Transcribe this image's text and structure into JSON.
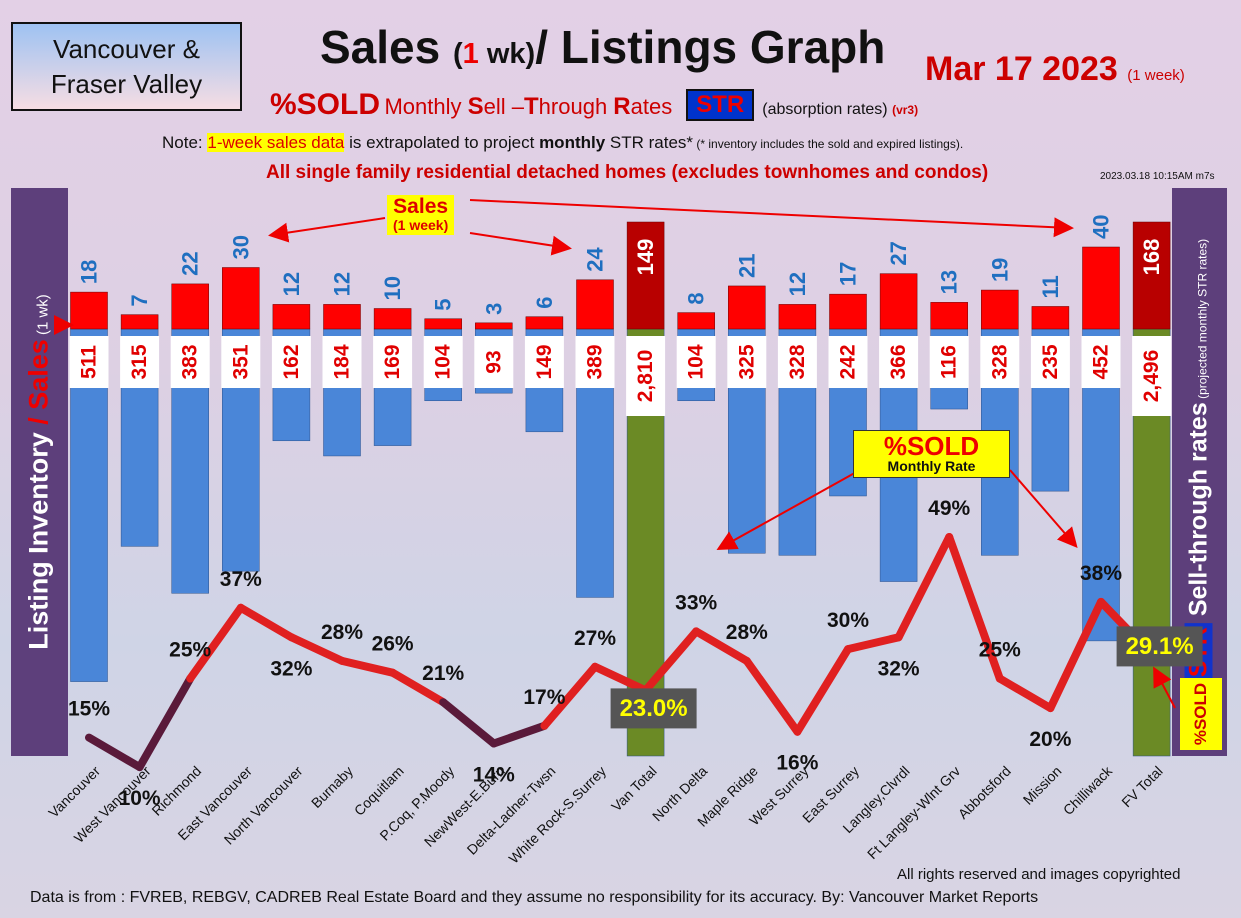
{
  "region_box": {
    "line1": "Vancouver &",
    "line2": "Fraser Valley"
  },
  "title": {
    "part1": "Sales ",
    "part2": "(",
    "part3": "1",
    "part4": " wk)",
    "part5": "/ Listings Graph"
  },
  "date": {
    "text": "Mar 17  2023",
    "suffix": "(1 week)"
  },
  "subtitle": {
    "pct_sold": "%SOLD",
    "s1": "Monthly ",
    "s2": "S",
    "s3": "ell –",
    "s4": "T",
    "s5": "hrough ",
    "s6": "R",
    "s7": "ates",
    "str": "STR",
    "absorption": "(absorption rates)",
    "version": "(vr3)"
  },
  "note": {
    "prefix": "Note: ",
    "highlight": "1-week sales data",
    "mid": " is extrapolated to project ",
    "bold": "monthly",
    "suffix": " STR rates*",
    "tiny": " (* inventory includes the sold and expired listings)."
  },
  "headline": "All single family residential detached homes (excludes townhomes and condos)",
  "timestamp": "2023.03.18 10:15AM m7s",
  "left_axis": {
    "a": "Listing Inventory ",
    "slash": "/",
    "b": " Sales",
    "c": " (1 wk)"
  },
  "right_axis": {
    "str": "STR",
    "a": " Sell-through rates",
    "b": " (projected monthly STR rates)"
  },
  "side_pct_sold": "%SOLD",
  "sales_callout": {
    "l1": "Sales",
    "l2": "(1 week)"
  },
  "sold_callout": {
    "l1": "%SOLD",
    "l2": "Monthly Rate"
  },
  "copyright": "All rights reserved and  images copyrighted",
  "source": "Data is from : FVREB, REBGV, CADREB Real Estate Board and they assume no responsibility for its accuracy. By: Vancouver Market Reports",
  "colors": {
    "sales_bar": "#ff0000",
    "total_sales_bar": "#b80000",
    "listing_bar": "#4a86d8",
    "total_listing_bar": "#6b8a25",
    "line": "#e02020",
    "line_dark": "#5a1a3a",
    "sales_label": "#1f6fc0",
    "listing_label": "#e00000",
    "panel": "#5d3f7b"
  },
  "chart_data": {
    "type": "bar",
    "categories": [
      "Vancouver",
      "West Vancouver",
      "Richmond",
      "East Vancouver",
      "North Vancouver",
      "Burnaby",
      "Coquitlam",
      "P.Coq, P.Moody",
      "NewWest-E.Burn",
      "Delta-Ladner-Twsn",
      "White Rock-S.Surrey",
      "Van Total",
      "North Delta",
      "Maple Ridge",
      "West Surrey",
      "East Surrey",
      "Langley,Clvrdl",
      "Ft Langley-Wlnt Grv",
      "Abbotsford",
      "Mission",
      "Chilliwack",
      "FV Total"
    ],
    "sales": [
      "18",
      "7",
      "22",
      "30",
      "12",
      "12",
      "10",
      "5",
      "3",
      "6",
      "24",
      "149",
      "8",
      "21",
      "12",
      "17",
      "27",
      "13",
      "19",
      "11",
      "40",
      "168"
    ],
    "listings": [
      "511",
      "315",
      "383",
      "351",
      "162",
      "184",
      "169",
      "104",
      "93",
      "149",
      "389",
      "2,810",
      "104",
      "325",
      "328",
      "242",
      "366",
      "116",
      "328",
      "235",
      "452",
      "2,496"
    ],
    "str_percent": [
      "15%",
      "10%",
      "25%",
      "37%",
      "32%",
      "28%",
      "26%",
      "21%",
      "14%",
      "17%",
      "27%",
      "23.0%",
      "33%",
      "28%",
      "16%",
      "30%",
      "32%",
      "49%",
      "25%",
      "20%",
      "38%",
      "29.1%"
    ],
    "totals_index": [
      11,
      21
    ],
    "legend": "none"
  }
}
